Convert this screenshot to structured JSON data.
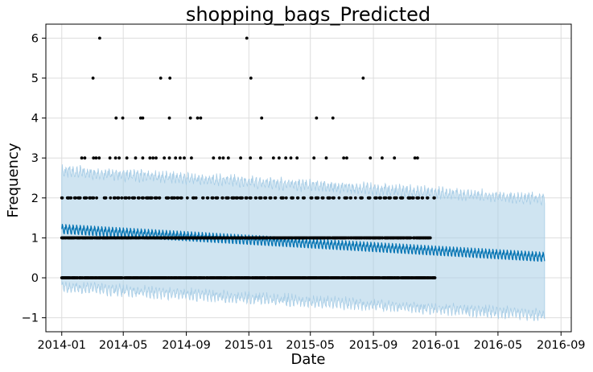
{
  "chart_data": {
    "type": "line",
    "title": "shopping_bags_Predicted",
    "xlabel": "Date",
    "ylabel": "Frequency",
    "x_range": [
      "2013-12-01",
      "2016-09-21"
    ],
    "ylim": [
      -1.35,
      6.35
    ],
    "grid": true,
    "x_ticks": [
      "2014-01",
      "2014-05",
      "2014-09",
      "2015-01",
      "2015-05",
      "2015-09",
      "2016-01",
      "2016-05",
      "2016-09"
    ],
    "y_ticks": [
      -1,
      0,
      1,
      2,
      3,
      4,
      5,
      6
    ],
    "x_tick_labels": [
      "2014-01",
      "2014-05",
      "2014-09",
      "2015-01",
      "2015-05",
      "2015-09",
      "2016-01",
      "2016-05",
      "2016-09"
    ],
    "y_tick_labels": [
      "−1",
      "0",
      "1",
      "2",
      "3",
      "4",
      "5",
      "6"
    ],
    "forecast": {
      "start": "2014-01-01",
      "end": "2016-07-31",
      "trend_start": 1.22,
      "trend_end": 0.52,
      "weekly_amplitude": 0.12,
      "interval_half_width": 1.45,
      "line_color": "#0072B2",
      "interval_color": "#a8cde6"
    },
    "observed": {
      "color": "#000000",
      "points": [
        [
          "2014-03-03",
          5
        ],
        [
          "2014-03-16",
          6
        ],
        [
          "2014-07-13",
          5
        ],
        [
          "2014-07-31",
          5
        ],
        [
          "2014-12-28",
          6
        ],
        [
          "2015-01-05",
          5
        ],
        [
          "2015-08-12",
          5
        ],
        [
          "2014-04-17",
          4
        ],
        [
          "2014-04-30",
          4
        ],
        [
          "2014-06-04",
          4
        ],
        [
          "2014-06-08",
          4
        ],
        [
          "2014-07-30",
          4
        ],
        [
          "2014-09-09",
          4
        ],
        [
          "2014-09-23",
          4
        ],
        [
          "2014-09-29",
          4
        ],
        [
          "2015-01-26",
          4
        ],
        [
          "2015-05-13",
          4
        ],
        [
          "2015-06-14",
          4
        ],
        [
          "2014-02-09",
          3
        ],
        [
          "2014-02-15",
          3
        ],
        [
          "2014-03-04",
          3
        ],
        [
          "2014-03-09",
          3
        ],
        [
          "2014-03-15",
          3
        ],
        [
          "2014-04-05",
          3
        ],
        [
          "2014-04-16",
          3
        ],
        [
          "2014-04-23",
          3
        ],
        [
          "2014-05-08",
          3
        ],
        [
          "2014-05-25",
          3
        ],
        [
          "2014-06-08",
          3
        ],
        [
          "2014-06-22",
          3
        ],
        [
          "2014-06-28",
          3
        ],
        [
          "2014-07-04",
          3
        ],
        [
          "2014-07-20",
          3
        ],
        [
          "2014-07-30",
          3
        ],
        [
          "2014-08-11",
          3
        ],
        [
          "2014-08-20",
          3
        ],
        [
          "2014-08-28",
          3
        ],
        [
          "2014-09-11",
          3
        ],
        [
          "2014-10-24",
          3
        ],
        [
          "2014-11-05",
          3
        ],
        [
          "2014-11-12",
          3
        ],
        [
          "2014-11-22",
          3
        ],
        [
          "2014-12-16",
          3
        ],
        [
          "2015-01-04",
          3
        ],
        [
          "2015-01-24",
          3
        ],
        [
          "2015-02-18",
          3
        ],
        [
          "2015-03-01",
          3
        ],
        [
          "2015-03-14",
          3
        ],
        [
          "2015-03-24",
          3
        ],
        [
          "2015-04-05",
          3
        ],
        [
          "2015-05-08",
          3
        ],
        [
          "2015-06-01",
          3
        ],
        [
          "2015-07-05",
          3
        ],
        [
          "2015-07-11",
          3
        ],
        [
          "2015-08-26",
          3
        ],
        [
          "2015-09-18",
          3
        ],
        [
          "2015-10-12",
          3
        ],
        [
          "2015-11-21",
          3
        ],
        [
          "2015-11-26",
          3
        ]
      ],
      "two_dates": [
        "2014-01-01",
        "2014-01-12",
        "2014-01-18",
        "2014-01-26",
        "2014-02-02",
        "2014-02-14",
        "2014-02-24",
        "2014-03-02",
        "2014-03-10",
        "2014-03-25",
        "2014-04-06",
        "2014-04-13",
        "2014-04-20",
        "2014-04-28",
        "2014-05-04",
        "2014-05-12",
        "2014-05-19",
        "2014-05-30",
        "2014-06-07",
        "2014-06-15",
        "2014-06-22",
        "2014-07-02",
        "2014-07-10",
        "2014-07-24",
        "2014-08-03",
        "2014-08-08",
        "2014-08-14",
        "2014-08-21",
        "2014-09-03",
        "2014-09-14",
        "2014-09-20",
        "2014-10-03",
        "2014-10-12",
        "2014-10-21",
        "2014-10-29",
        "2014-11-10",
        "2014-11-18",
        "2014-11-29",
        "2014-12-07",
        "2014-12-15",
        "2014-12-26",
        "2015-01-03",
        "2015-01-14",
        "2015-01-22",
        "2015-02-01",
        "2015-02-11",
        "2015-02-21",
        "2015-03-05",
        "2015-03-15",
        "2015-03-25",
        "2015-04-06",
        "2015-04-17",
        "2015-05-02",
        "2015-05-12",
        "2015-05-24",
        "2015-06-04",
        "2015-06-14",
        "2015-06-26",
        "2015-07-07",
        "2015-07-18",
        "2015-07-28",
        "2015-08-07",
        "2015-08-22",
        "2015-09-04",
        "2015-09-13",
        "2015-09-22",
        "2015-10-01",
        "2015-10-12",
        "2015-10-24",
        "2015-11-08",
        "2015-11-16",
        "2015-11-25",
        "2015-12-05",
        "2015-12-15",
        "2015-12-28"
      ],
      "one_range": [
        "2014-01-01",
        "2015-12-21"
      ],
      "zero_range": [
        "2014-01-01",
        "2015-12-31"
      ]
    }
  }
}
